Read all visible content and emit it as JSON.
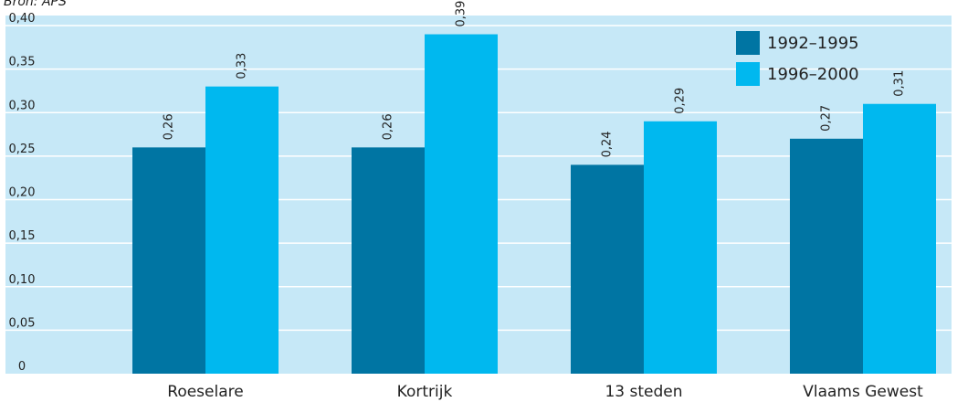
{
  "source_note": "Bron: APS",
  "colors": {
    "plot_background": "#c6e8f7",
    "gridline": "#ffffff",
    "series_1": "#0075a3",
    "series_2": "#00b8ef"
  },
  "chart_data": {
    "type": "bar",
    "categories": [
      "Roeselare",
      "Kortrijk",
      "13 steden",
      "Vlaams Gewest"
    ],
    "series": [
      {
        "name": "1992–1995",
        "values": [
          0.26,
          0.26,
          0.24,
          0.27
        ],
        "labels": [
          "0,26",
          "0,26",
          "0,24",
          "0,27"
        ]
      },
      {
        "name": "1996–2000",
        "values": [
          0.33,
          0.39,
          0.29,
          0.31
        ],
        "labels": [
          "0,33",
          "0,39",
          "0,29",
          "0,31"
        ]
      }
    ],
    "ylim": [
      0,
      0.4
    ],
    "yticks": [
      0,
      0.05,
      0.1,
      0.15,
      0.2,
      0.25,
      0.3,
      0.35,
      0.4
    ],
    "ytick_labels": [
      "0",
      "0,05",
      "0,10",
      "0,15",
      "0,20",
      "0,25",
      "0,30",
      "0,35",
      "0,40"
    ],
    "grid": true,
    "legend_position": "top-right"
  }
}
